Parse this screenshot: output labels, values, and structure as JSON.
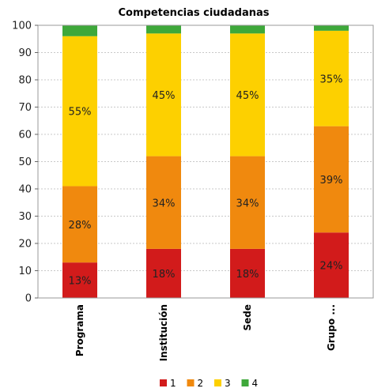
{
  "chart_data": {
    "type": "bar",
    "stacked": true,
    "title": "Competencias ciudadanas",
    "xlabel": "",
    "ylabel": "",
    "ylim": [
      0,
      100
    ],
    "yticks": [
      0,
      10,
      20,
      30,
      40,
      50,
      60,
      70,
      80,
      90,
      100
    ],
    "grid": true,
    "legend_position": "bottom",
    "categories": [
      "Programa",
      "Institución",
      "Sede",
      "Grupo ..."
    ],
    "series": [
      {
        "name": "1",
        "color": "#d21b1b",
        "values": [
          13,
          18,
          18,
          24
        ],
        "labels": [
          "13%",
          "18%",
          "18%",
          "24%"
        ]
      },
      {
        "name": "2",
        "color": "#f0890e",
        "values": [
          28,
          34,
          34,
          39
        ],
        "labels": [
          "28%",
          "34%",
          "34%",
          "39%"
        ]
      },
      {
        "name": "3",
        "color": "#fdd000",
        "values": [
          55,
          45,
          45,
          35
        ],
        "labels": [
          "55%",
          "45%",
          "45%",
          "35%"
        ]
      },
      {
        "name": "4",
        "color": "#3ea83a",
        "values": [
          4,
          3,
          3,
          2
        ],
        "labels": [
          "",
          "",
          "",
          ""
        ]
      }
    ]
  }
}
